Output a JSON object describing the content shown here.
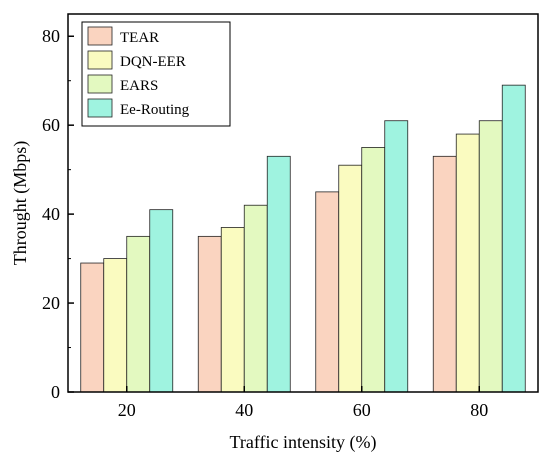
{
  "chart_data": {
    "type": "bar",
    "title": "",
    "xlabel": "Traffic intensity (%)",
    "ylabel": "Throught (Mbps)",
    "categories": [
      "20",
      "40",
      "60",
      "80"
    ],
    "ylim": [
      0,
      85
    ],
    "yticks": [
      "0",
      "20",
      "40",
      "60",
      "80"
    ],
    "legend_position": "top-left",
    "grid": false,
    "series": [
      {
        "name": "TEAR",
        "values": [
          29,
          35,
          45,
          53
        ],
        "color": "#fad4c0"
      },
      {
        "name": "DQN-EER",
        "values": [
          30,
          37,
          51,
          58
        ],
        "color": "#fafbc0"
      },
      {
        "name": "EARS",
        "values": [
          35,
          42,
          55,
          61
        ],
        "color": "#e3f9c0"
      },
      {
        "name": "Ee-Routing",
        "values": [
          41,
          53,
          61,
          69
        ],
        "color": "#9ff3e0"
      }
    ]
  }
}
